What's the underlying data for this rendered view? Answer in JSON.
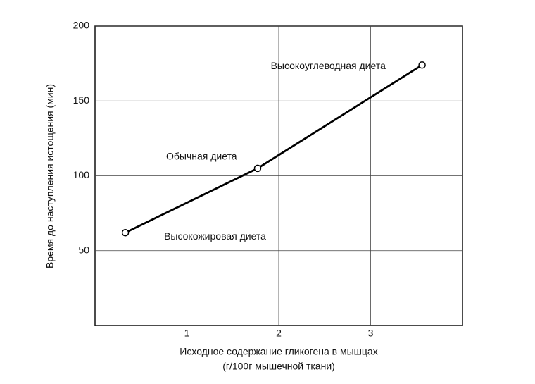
{
  "chart_data": {
    "type": "line",
    "ylabel": "Время до наступления истощения (мин)",
    "xlabel": [
      "Исходное содержание гликогена в мышцах",
      "(г/100г мышечной ткани)"
    ],
    "x": [
      0.33,
      1.77,
      3.56
    ],
    "series": [
      {
        "color": "#000000",
        "values": [
          62,
          105,
          174
        ]
      }
    ],
    "annotations": [
      "Высокожировая диета",
      "Обычная диета",
      "Высокоуглеводная диета"
    ],
    "xlim": [
      0,
      4
    ],
    "xticks": [
      1,
      2,
      3
    ],
    "ylim": [
      0,
      200
    ],
    "yticks": [
      50,
      100,
      150,
      200
    ],
    "grid": true,
    "markers": true
  }
}
